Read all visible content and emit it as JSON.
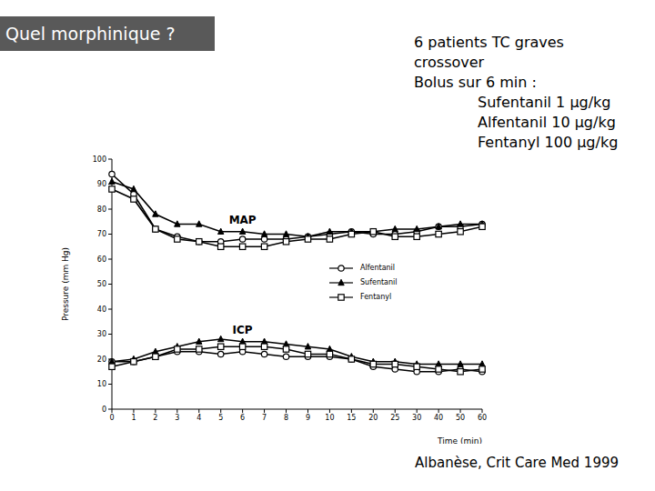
{
  "chart_data": {
    "type": "line",
    "title": "Quel morphinique ?",
    "notes": [
      "6 patients TC graves",
      "crossover",
      "Bolus sur 6 min :"
    ],
    "doses": [
      "Sufentanil 1 µg/kg",
      "Alfentanil 10 µg/kg",
      "Fentanyl 100 µg/kg"
    ],
    "source": "Albanèse, Crit Care Med 1999",
    "x_label": "Time (min)",
    "y_label": "Pressure (mm Hg)",
    "categories": [
      "0",
      "1",
      "2",
      "3",
      "4",
      "5",
      "6",
      "7",
      "8",
      "9",
      "10",
      "15",
      "20",
      "25",
      "30",
      "40",
      "50",
      "60"
    ],
    "ylim": [
      0,
      100
    ],
    "yticks": [
      0,
      10,
      20,
      30,
      40,
      50,
      60,
      70,
      80,
      90,
      100
    ],
    "grid": false,
    "groups": [
      {
        "name": "MAP",
        "series": [
          {
            "name": "Alfentanil",
            "color": "#000000",
            "marker": "circle",
            "values": [
              94,
              86,
              72,
              69,
              67,
              67,
              68,
              68,
              68,
              69,
              70,
              71,
              70,
              70,
              71,
              73,
              73,
              74
            ]
          },
          {
            "name": "Sufentanil",
            "color": "#000000",
            "marker": "triangle",
            "values": [
              91,
              88,
              78,
              74,
              74,
              71,
              71,
              70,
              70,
              69,
              71,
              71,
              71,
              72,
              72,
              73,
              74,
              74
            ]
          },
          {
            "name": "Fentanyl",
            "color": "#000000",
            "marker": "square",
            "values": [
              88,
              84,
              72,
              68,
              67,
              65,
              65,
              65,
              67,
              68,
              68,
              70,
              71,
              69,
              69,
              70,
              71,
              73
            ]
          }
        ]
      },
      {
        "name": "ICP",
        "series": [
          {
            "name": "Alfentanil",
            "color": "#000000",
            "marker": "circle",
            "values": [
              19,
              19,
              21,
              23,
              23,
              22,
              23,
              22,
              21,
              21,
              21,
              20,
              17,
              16,
              15,
              15,
              16,
              15
            ]
          },
          {
            "name": "Sufentanil",
            "color": "#000000",
            "marker": "triangle",
            "values": [
              19,
              20,
              23,
              25,
              27,
              28,
              27,
              27,
              26,
              25,
              24,
              21,
              19,
              19,
              18,
              18,
              18,
              18
            ]
          },
          {
            "name": "Fentanyl",
            "color": "#000000",
            "marker": "square",
            "values": [
              17,
              19,
              21,
              24,
              24,
              25,
              25,
              25,
              24,
              22,
              22,
              20,
              18,
              18,
              17,
              16,
              15,
              16
            ]
          }
        ]
      }
    ]
  }
}
